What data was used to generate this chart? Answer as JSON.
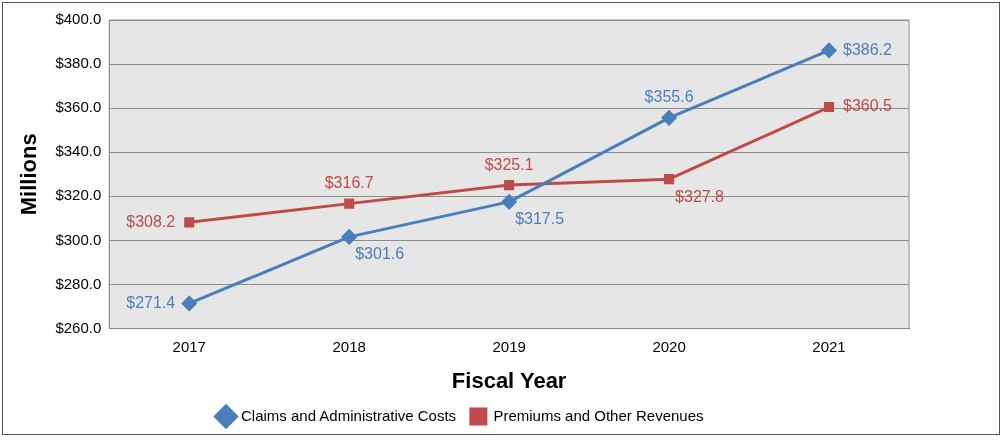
{
  "chart_data": {
    "type": "line",
    "xlabel": "Fiscal Year",
    "ylabel": "Millions",
    "categories": [
      "2017",
      "2018",
      "2019",
      "2020",
      "2021"
    ],
    "series": [
      {
        "name": "Claims and Administrative Costs",
        "color": "#4a7ebb",
        "marker": "diamond",
        "values": [
          271.4,
          301.6,
          317.5,
          355.6,
          386.2
        ],
        "value_labels": [
          "$271.4",
          "$301.6",
          "$317.5",
          "$355.6",
          "$386.2"
        ]
      },
      {
        "name": "Premiums and Other Revenues",
        "color": "#be4b48",
        "marker": "square",
        "values": [
          308.2,
          316.7,
          325.1,
          327.8,
          360.5
        ],
        "value_labels": [
          "$308.2",
          "$316.7",
          "$325.1",
          "$327.8",
          "$360.5"
        ]
      }
    ],
    "ylim": [
      260,
      400
    ],
    "yticks": [
      {
        "value": 260,
        "label": "$260.0"
      },
      {
        "value": 280,
        "label": "$280.0"
      },
      {
        "value": 300,
        "label": "$300.0"
      },
      {
        "value": 320,
        "label": "$320.0"
      },
      {
        "value": 340,
        "label": "$340.0"
      },
      {
        "value": 360,
        "label": "$360.0"
      },
      {
        "value": 380,
        "label": "$380.0"
      },
      {
        "value": 400,
        "label": "$400.0"
      }
    ],
    "grid": "y",
    "legend": "bottom",
    "line_style": "solid"
  }
}
